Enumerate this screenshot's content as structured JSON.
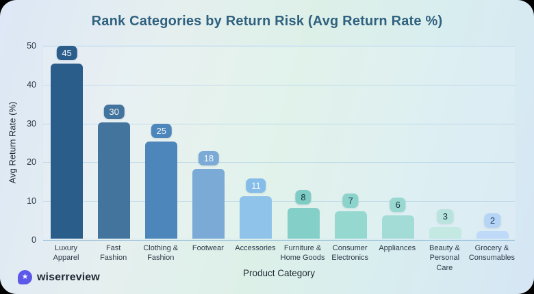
{
  "title": "Rank Categories by Return Risk (Avg Return Rate %)",
  "chart_data": {
    "type": "bar",
    "title": "Rank Categories by Return Risk (Avg Return Rate %)",
    "xlabel": "Product Category",
    "ylabel": "Avg Return Rate (%)",
    "ylim": [
      0,
      50
    ],
    "yticks": [
      0,
      10,
      20,
      30,
      40,
      50
    ],
    "grid": true,
    "legend": false,
    "categories": [
      "Luxury\nApparel",
      "Fast\nFashion",
      "Clothing &\nFashion",
      "Footwear",
      "Accessories",
      "Furniture &\nHome Goods",
      "Consumer\nElectronics",
      "Appliances",
      "Beauty &\nPersonal\nCare",
      "Grocery &\nConsumables"
    ],
    "values": [
      45,
      30,
      25,
      18,
      11,
      8,
      7,
      6,
      3,
      2
    ],
    "bar_colors": [
      "#2b5d8a",
      "#43749d",
      "#4d86bb",
      "#7aaad5",
      "#8fc3ea",
      "#84d0c8",
      "#95d8d0",
      "#a3dcd6",
      "#c4e8e2",
      "#bedaf8"
    ],
    "badge_colors": [
      "#2b5d8a",
      "#43749d",
      "#4d86bb",
      "#7aaad5",
      "#85bce8",
      "#7fccc4",
      "#8bd3cb",
      "#98d8d1",
      "#b9e3dd",
      "#b6d4f6"
    ],
    "badge_text_colors": [
      "#f4f9fd",
      "#f4f9fd",
      "#f4f9fd",
      "#f4f9fd",
      "#f4f9fd",
      "#14333e",
      "#14333e",
      "#14333e",
      "#14333e",
      "#1e3a5c"
    ]
  },
  "branding": {
    "logo_text": "wiserreview",
    "logo_icon": "star-badge-icon",
    "logo_color": "#5c58e9",
    "star_glyph": "★"
  }
}
